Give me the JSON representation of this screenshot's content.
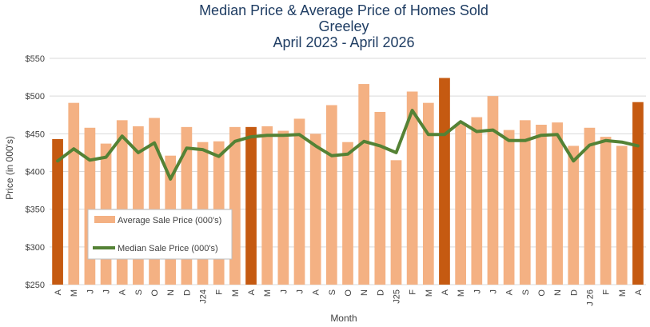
{
  "chart_data": {
    "type": "bar",
    "title": "Median Price & Average Price of Homes Sold",
    "subtitle_lines": [
      "Greeley",
      "April 2023 - April 2026"
    ],
    "xlabel": "Month",
    "ylabel": "Price (in 000's)",
    "ylim": [
      250,
      550
    ],
    "yticks": [
      "$250",
      "$300",
      "$350",
      "$400",
      "$450",
      "$500",
      "$550"
    ],
    "grid": true,
    "legend_position": "lower-left",
    "categories": [
      "A",
      "M",
      "J",
      "J",
      "A",
      "S",
      "O",
      "N",
      "D",
      "J24",
      "F",
      "M",
      "A",
      "M",
      "J",
      "J",
      "A",
      "S",
      "O",
      "N",
      "D",
      "J25",
      "F",
      "M",
      "A",
      "M",
      "J",
      "J",
      "A",
      "S",
      "O",
      "N",
      "D",
      "J 26",
      "F",
      "M",
      "A"
    ],
    "highlight_indices": [
      0,
      12,
      24,
      36
    ],
    "series": [
      {
        "name": "Average Sale Price (000's)",
        "type": "bar",
        "values": [
          443,
          491,
          458,
          437,
          468,
          460,
          471,
          421,
          459,
          439,
          440,
          459,
          459,
          460,
          454,
          470,
          450,
          488,
          439,
          516,
          479,
          415,
          506,
          491,
          524,
          463,
          472,
          500,
          455,
          468,
          462,
          465,
          434,
          458,
          446,
          434,
          492
        ]
      },
      {
        "name": "Median Sale Price (000's)",
        "type": "line",
        "values": [
          414,
          430,
          415,
          419,
          447,
          425,
          438,
          390,
          431,
          429,
          420,
          440,
          446,
          448,
          448,
          449,
          434,
          421,
          423,
          440,
          434,
          425,
          481,
          449,
          449,
          466,
          453,
          455,
          441,
          441,
          448,
          449,
          414,
          435,
          441,
          439,
          434
        ]
      }
    ],
    "colors": {
      "bar": "#f4b183",
      "bar_highlight": "#c55a11",
      "line": "#548235",
      "grid": "#d9d9d9",
      "title": "#1f3d63"
    }
  }
}
